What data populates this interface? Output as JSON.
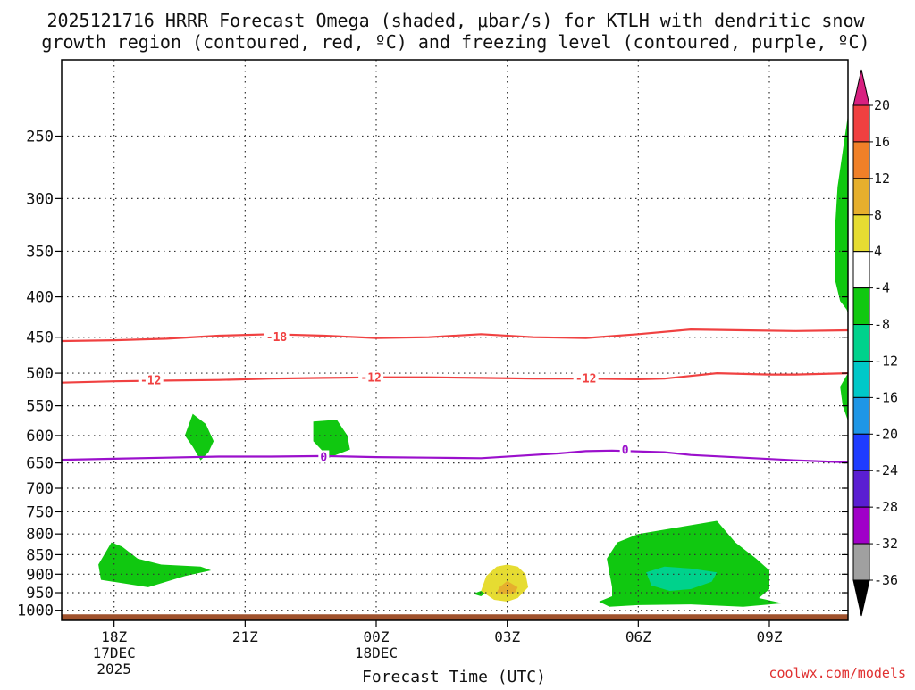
{
  "title_line1": "2025121716 HRRR Forecast Omega (shaded, μbar/s) for KTLH with dendritic snow",
  "title_line2": "growth region (contoured, red, ºC) and freezing level (contoured, purple, ºC)",
  "xlabel": "Forecast Time (UTC)",
  "credit": "coolwx.com/models",
  "colors": {
    "dgz_contour": "#f04141",
    "freezing_contour": "#9b10cc",
    "ground": "#a0522d",
    "credit": "#e03030"
  },
  "chart_data": {
    "type": "contour",
    "x_axis": {
      "unit": "hours since 16Z 17DEC2025 (UTC)",
      "range": [
        0,
        30
      ],
      "ticks": [
        {
          "x": 2,
          "label": "18Z",
          "sub1": "17DEC",
          "sub2": "2025"
        },
        {
          "x": 7,
          "label": "21Z",
          "sub1": "",
          "sub2": ""
        },
        {
          "x": 12,
          "label": "00Z",
          "sub1": "18DEC",
          "sub2": ""
        },
        {
          "x": 17,
          "label": "03Z",
          "sub1": "",
          "sub2": ""
        },
        {
          "x": 22,
          "label": "06Z",
          "sub1": "",
          "sub2": ""
        },
        {
          "x": 27,
          "label": "09Z",
          "sub1": "",
          "sub2": ""
        }
      ]
    },
    "y_axis": {
      "unit": "hPa",
      "scale": "log-pressure",
      "range": [
        1030,
        200
      ],
      "ticks": [
        250,
        300,
        350,
        400,
        450,
        500,
        550,
        600,
        650,
        700,
        750,
        800,
        850,
        900,
        950,
        1000
      ]
    },
    "colorbar": {
      "labels": [
        "20",
        "16",
        "12",
        "8",
        "4",
        "-4",
        "-8",
        "-12",
        "-16",
        "-20",
        "-24",
        "-28",
        "-32",
        "-36"
      ],
      "bands": [
        {
          "lo": 16,
          "hi": 20,
          "color": "#f04040"
        },
        {
          "lo": 12,
          "hi": 16,
          "color": "#f08028"
        },
        {
          "lo": 8,
          "hi": 12,
          "color": "#e6af2d"
        },
        {
          "lo": 4,
          "hi": 8,
          "color": "#e6dc32"
        },
        {
          "lo": -4,
          "hi": 4,
          "color": "#ffffff"
        },
        {
          "lo": -8,
          "hi": -4,
          "color": "#10c810"
        },
        {
          "lo": -12,
          "hi": -8,
          "color": "#00d28c"
        },
        {
          "lo": -16,
          "hi": -12,
          "color": "#00c8c8"
        },
        {
          "lo": -20,
          "hi": -16,
          "color": "#1e96e6"
        },
        {
          "lo": -24,
          "hi": -20,
          "color": "#1e3cff"
        },
        {
          "lo": -28,
          "hi": -24,
          "color": "#5a1ed2"
        },
        {
          "lo": -32,
          "hi": -28,
          "color": "#a000c8"
        },
        {
          "lo": -36,
          "hi": -32,
          "color": "#a0a0a0"
        }
      ],
      "over_color": "#d82080",
      "under_color": "#000000"
    },
    "contours": [
      {
        "name": "-18",
        "color": "#f04141",
        "labels": [
          {
            "x": 8.2,
            "p": 449,
            "text": "-18"
          }
        ],
        "points": [
          [
            0,
            455
          ],
          [
            2,
            454
          ],
          [
            4,
            452
          ],
          [
            6,
            448
          ],
          [
            8,
            446
          ],
          [
            10,
            448
          ],
          [
            12,
            451
          ],
          [
            14,
            450
          ],
          [
            16,
            446
          ],
          [
            18,
            450
          ],
          [
            20,
            451
          ],
          [
            22,
            446
          ],
          [
            24,
            440
          ],
          [
            26,
            441
          ],
          [
            28,
            442
          ],
          [
            30,
            441
          ]
        ]
      },
      {
        "name": "-12",
        "color": "#f04141",
        "labels": [
          {
            "x": 3.4,
            "p": 510,
            "text": "-12"
          },
          {
            "x": 11.8,
            "p": 506,
            "text": "-12"
          },
          {
            "x": 20,
            "p": 507,
            "text": "-12"
          }
        ],
        "points": [
          [
            0,
            514
          ],
          [
            2,
            512
          ],
          [
            4,
            511
          ],
          [
            6,
            510
          ],
          [
            8,
            508
          ],
          [
            10,
            507
          ],
          [
            12,
            506
          ],
          [
            14,
            506
          ],
          [
            16,
            507
          ],
          [
            18,
            508
          ],
          [
            20,
            508
          ],
          [
            22,
            509
          ],
          [
            23,
            508
          ],
          [
            25,
            500
          ],
          [
            27,
            502
          ],
          [
            28,
            502
          ],
          [
            30,
            500
          ]
        ]
      },
      {
        "name": "0",
        "color": "#9b10cc",
        "labels": [
          {
            "x": 10,
            "p": 638,
            "text": "0"
          },
          {
            "x": 21.5,
            "p": 625,
            "text": "0"
          }
        ],
        "points": [
          [
            0,
            644
          ],
          [
            2,
            642
          ],
          [
            4,
            640
          ],
          [
            6,
            638
          ],
          [
            8,
            638
          ],
          [
            10,
            637
          ],
          [
            12,
            639
          ],
          [
            14,
            640
          ],
          [
            16,
            641
          ],
          [
            18,
            635
          ],
          [
            19,
            632
          ],
          [
            20,
            628
          ],
          [
            21,
            627
          ],
          [
            23,
            630
          ],
          [
            24,
            635
          ],
          [
            26,
            640
          ],
          [
            28,
            645
          ],
          [
            30,
            649
          ]
        ]
      }
    ],
    "shaded_regions": [
      {
        "band": "-8 to -4",
        "color": "#10c810",
        "points": [
          [
            1.9,
            820
          ],
          [
            2.3,
            830
          ],
          [
            2.9,
            860
          ],
          [
            3.8,
            875
          ],
          [
            5.3,
            880
          ],
          [
            5.7,
            890
          ],
          [
            4.7,
            905
          ],
          [
            3.3,
            935
          ],
          [
            1.5,
            915
          ],
          [
            1.4,
            875
          ]
        ]
      },
      {
        "band": "-8 to -4",
        "color": "#10c810",
        "points": [
          [
            5.0,
            563
          ],
          [
            5.5,
            580
          ],
          [
            5.8,
            610
          ],
          [
            5.6,
            630
          ],
          [
            5.3,
            645
          ],
          [
            5.0,
            620
          ],
          [
            4.7,
            600
          ]
        ]
      },
      {
        "band": "-8 to -4",
        "color": "#10c810",
        "points": [
          [
            9.6,
            576
          ],
          [
            10.5,
            573
          ],
          [
            10.9,
            600
          ],
          [
            11.0,
            625
          ],
          [
            10.2,
            640
          ],
          [
            9.9,
            625
          ],
          [
            9.6,
            610
          ]
        ]
      },
      {
        "band": "-8 to -4",
        "color": "#10c810",
        "points": [
          [
            16.0,
            945
          ],
          [
            16.2,
            950
          ],
          [
            16.0,
            960
          ],
          [
            15.7,
            953
          ]
        ]
      },
      {
        "band": "4 to 8",
        "color": "#e6dc32",
        "points": [
          [
            17.0,
            875
          ],
          [
            17.4,
            880
          ],
          [
            17.7,
            900
          ],
          [
            17.8,
            935
          ],
          [
            17.4,
            965
          ],
          [
            17.0,
            975
          ],
          [
            16.5,
            970
          ],
          [
            16.0,
            945
          ],
          [
            16.2,
            905
          ],
          [
            16.6,
            880
          ]
        ]
      },
      {
        "band": "8 to 12",
        "color": "#e6af2d",
        "points": [
          [
            17.0,
            918
          ],
          [
            17.4,
            935
          ],
          [
            17.3,
            950
          ],
          [
            17.0,
            955
          ],
          [
            16.6,
            950
          ],
          [
            16.7,
            935
          ]
        ]
      },
      {
        "band": "-8 to -4",
        "color": "#10c810",
        "points": [
          [
            20.8,
            860
          ],
          [
            21.2,
            820
          ],
          [
            22.0,
            800
          ],
          [
            23.5,
            785
          ],
          [
            25.0,
            770
          ],
          [
            25.7,
            820
          ],
          [
            26.5,
            860
          ],
          [
            27.0,
            890
          ],
          [
            27.0,
            940
          ],
          [
            26.6,
            965
          ],
          [
            27.5,
            980
          ],
          [
            26.0,
            990
          ],
          [
            24.0,
            983
          ],
          [
            22.0,
            985
          ],
          [
            20.9,
            990
          ],
          [
            20.5,
            975
          ],
          [
            21.0,
            960
          ],
          [
            21.0,
            935
          ]
        ]
      },
      {
        "band": "-12 to -8",
        "color": "#00d28c",
        "points": [
          [
            22.3,
            895
          ],
          [
            23.0,
            880
          ],
          [
            24.0,
            885
          ],
          [
            25.0,
            895
          ],
          [
            24.8,
            920
          ],
          [
            24.0,
            940
          ],
          [
            23.2,
            945
          ],
          [
            22.5,
            930
          ]
        ]
      },
      {
        "band": "-8 to -4",
        "color": "#10c810",
        "points": [
          [
            30,
            235
          ],
          [
            29.6,
            290
          ],
          [
            29.5,
            330
          ],
          [
            29.5,
            380
          ],
          [
            29.7,
            405
          ],
          [
            29.95,
            415
          ],
          [
            30,
            420
          ]
        ]
      },
      {
        "band": "-8 to -4",
        "color": "#10c810",
        "points": [
          [
            30,
            500
          ],
          [
            29.7,
            520
          ],
          [
            29.8,
            550
          ],
          [
            30,
            575
          ]
        ]
      }
    ],
    "ground_pressure": 1030,
    "ground_top_pressure": 1012
  }
}
